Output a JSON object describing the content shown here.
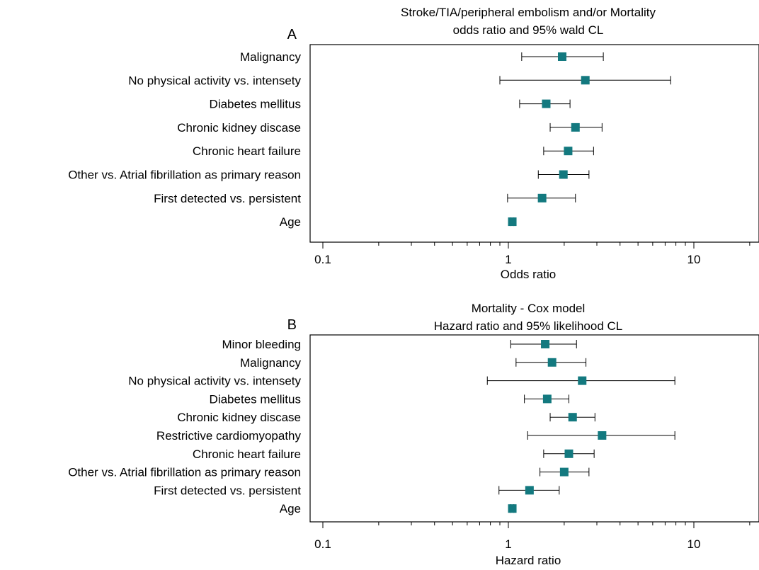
{
  "chart_data": [
    {
      "type": "forest",
      "panel_label": "A",
      "title": "Stroke/TIA/peripheral embolism and/or Mortality",
      "subtitle": "odds ratio and 95% wald CL",
      "xlabel": "Odds ratio",
      "x_scale": "log",
      "xlim": [
        0.1,
        22
      ],
      "x_ticks": [
        {
          "value": 0.1,
          "label": "0.1"
        },
        {
          "value": 1,
          "label": "1"
        },
        {
          "value": 10,
          "label": "10"
        }
      ],
      "marker_color": "#13797f",
      "rows": [
        {
          "label": "Malignancy",
          "estimate": 1.95,
          "lower": 1.18,
          "upper": 3.25
        },
        {
          "label": "No physical activity vs. intensety",
          "estimate": 2.6,
          "lower": 0.9,
          "upper": 7.5
        },
        {
          "label": "Diabetes mellitus",
          "estimate": 1.6,
          "lower": 1.15,
          "upper": 2.15
        },
        {
          "label": "Chronic kidney discase",
          "estimate": 2.3,
          "lower": 1.68,
          "upper": 3.2
        },
        {
          "label": "Chronic heart failure",
          "estimate": 2.1,
          "lower": 1.55,
          "upper": 2.88
        },
        {
          "label": "Other vs. Atrial fibrillation as primary reason",
          "estimate": 1.98,
          "lower": 1.45,
          "upper": 2.72
        },
        {
          "label": "First detected vs. persistent",
          "estimate": 1.52,
          "lower": 0.99,
          "upper": 2.3
        },
        {
          "label": "Age",
          "estimate": 1.05,
          "lower": 1.03,
          "upper": 1.07
        }
      ]
    },
    {
      "type": "forest",
      "panel_label": "B",
      "title": "Mortality - Cox model",
      "subtitle": "Hazard ratio and 95% likelihood CL",
      "xlabel": "Hazard ratio",
      "x_scale": "log",
      "xlim": [
        0.1,
        22
      ],
      "x_ticks": [
        {
          "value": 0.1,
          "label": "0.1"
        },
        {
          "value": 1,
          "label": "1"
        },
        {
          "value": 10,
          "label": "10"
        }
      ],
      "marker_color": "#13797f",
      "rows": [
        {
          "label": "Minor bleeding",
          "estimate": 1.58,
          "lower": 1.03,
          "upper": 2.33
        },
        {
          "label": "Malignancy",
          "estimate": 1.72,
          "lower": 1.1,
          "upper": 2.62
        },
        {
          "label": "No physical activity vs. intensety",
          "estimate": 2.5,
          "lower": 0.77,
          "upper": 7.9
        },
        {
          "label": "Diabetes mellitus",
          "estimate": 1.62,
          "lower": 1.22,
          "upper": 2.12
        },
        {
          "label": "Chronic kidney discase",
          "estimate": 2.22,
          "lower": 1.68,
          "upper": 2.93
        },
        {
          "label": "Restrictive cardiomyopathy",
          "estimate": 3.2,
          "lower": 1.27,
          "upper": 7.9
        },
        {
          "label": "Chronic heart failure",
          "estimate": 2.12,
          "lower": 1.55,
          "upper": 2.9
        },
        {
          "label": "Other vs. Atrial fibrillation as primary reason",
          "estimate": 2.0,
          "lower": 1.48,
          "upper": 2.72
        },
        {
          "label": "First detected vs. persistent",
          "estimate": 1.3,
          "lower": 0.89,
          "upper": 1.88
        },
        {
          "label": "Age",
          "estimate": 1.05,
          "lower": 1.03,
          "upper": 1.07
        }
      ]
    }
  ]
}
